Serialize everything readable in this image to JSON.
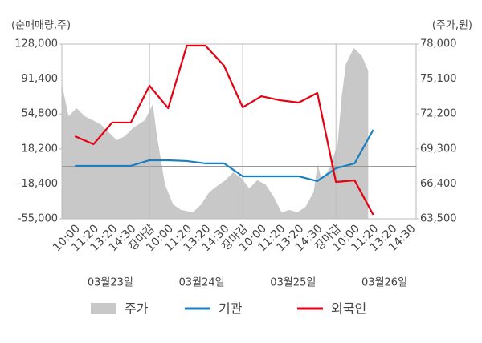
{
  "chart_data": {
    "type": "line",
    "y_axis_label": "(순매매량,주)",
    "y2_axis_label": "(주가,원)",
    "categories": [
      "10:00",
      "11:20",
      "13:20",
      "14:30",
      "장마감",
      "10:00",
      "11:20",
      "13:20",
      "14:30",
      "장마감",
      "10:00",
      "11:20",
      "13:20",
      "14:30",
      "장마감",
      "10:00",
      "11:20",
      "13:20",
      "14:30"
    ],
    "xtick_colors": [
      "#444",
      "#444",
      "#444",
      "#444",
      "#e60012",
      "#444",
      "#444",
      "#444",
      "#444",
      "#e60012",
      "#444",
      "#444",
      "#444",
      "#444",
      "#e60012",
      "#444",
      "#444",
      "#444",
      "#444"
    ],
    "date_labels": [
      "03월23일",
      "03월24일",
      "03월25일",
      "03월26일"
    ],
    "xlim": [
      -0.7,
      18.3
    ],
    "ylim": [
      -55000,
      128000
    ],
    "yticks": [
      {
        "value": -55000,
        "label": "-55,000"
      },
      {
        "value": -18400,
        "label": "-18,400"
      },
      {
        "value": 18200,
        "label": "18,200"
      },
      {
        "value": 54800,
        "label": "54,800"
      },
      {
        "value": 91400,
        "label": "91,400"
      },
      {
        "value": 128000,
        "label": "128,000"
      }
    ],
    "y2lim": [
      63500,
      78000
    ],
    "y2ticks": [
      {
        "value": 63500,
        "label": "63,500"
      },
      {
        "value": 66400,
        "label": "66,400"
      },
      {
        "value": 69300,
        "label": "69,300"
      },
      {
        "value": 72200,
        "label": "72,200"
      },
      {
        "value": 75100,
        "label": "75,100"
      },
      {
        "value": 78000,
        "label": "78,000"
      }
    ],
    "series": [
      {
        "name": "주가",
        "type": "area",
        "axis": "y2",
        "color": "#c8c8c8",
        "x": [
          -0.7,
          -0.34,
          0.09,
          0.52,
          0.95,
          1.38,
          1.81,
          2.24,
          2.67,
          3.1,
          3.75,
          4.18,
          4.4,
          4.83,
          5.26,
          5.69,
          6.34,
          6.77,
          7.2,
          7.63,
          8.06,
          8.49,
          8.92,
          9.35,
          9.78,
          10.22,
          10.65,
          11.08,
          11.51,
          11.94,
          12.37,
          12.8,
          13.02,
          13.23,
          13.66,
          14.09,
          14.31,
          14.53,
          14.96,
          15.39,
          15.73
        ],
        "values": [
          74680,
          72020,
          72680,
          72020,
          71680,
          71350,
          70690,
          70020,
          70350,
          71020,
          71680,
          73010,
          70350,
          66360,
          64700,
          64240,
          64040,
          64700,
          65700,
          66230,
          66700,
          67360,
          66900,
          66030,
          66700,
          66360,
          65360,
          64040,
          64240,
          64040,
          64500,
          65700,
          68030,
          66700,
          67700,
          69700,
          73680,
          76340,
          77670,
          77000,
          75800
        ]
      },
      {
        "name": "기관",
        "color": "#1a7fc1",
        "values": [
          420,
          420,
          420,
          420,
          6300,
          6300,
          5500,
          3000,
          3000,
          -10500,
          -10500,
          -10500,
          -10500,
          -15500,
          -2100,
          3000,
          38200,
          null,
          null
        ]
      },
      {
        "name": "외국인",
        "color": "#e60012",
        "values": [
          31500,
          23100,
          45800,
          45800,
          84400,
          60900,
          126300,
          126300,
          105300,
          61700,
          73400,
          69200,
          66700,
          76800,
          -16400,
          -14700,
          -50800,
          null,
          null
        ]
      }
    ]
  }
}
